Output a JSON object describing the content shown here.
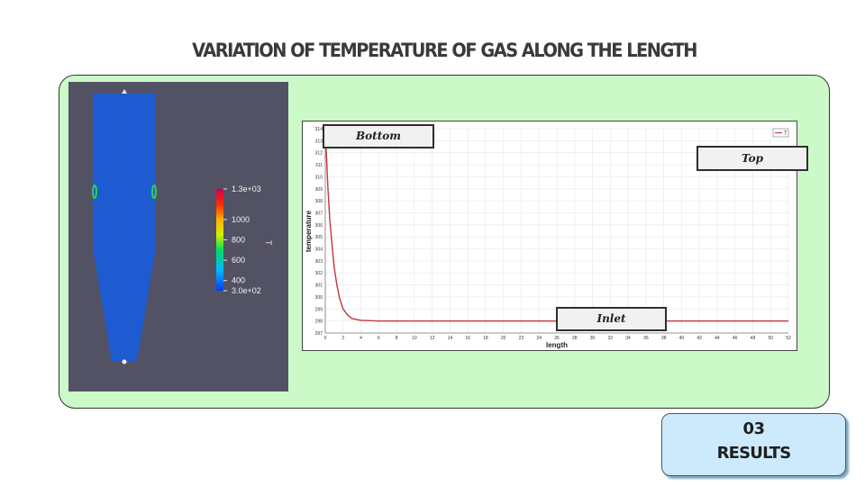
{
  "slide": {
    "title": "VARIATION OF TEMPERATURE OF GAS ALONG THE LENGTH",
    "badge_number": "03",
    "badge_label": "RESULTS"
  },
  "colors": {
    "panel_bg": "#ccf9c8",
    "viewport_bg": "#525264",
    "vessel_fill": "#1e5bd0",
    "curve": "#c8343c",
    "badge_bg": "#cdeafd"
  },
  "colorbar": {
    "title": "T",
    "scale": "rainbow",
    "range": [
      300,
      1300
    ],
    "tick_labels": [
      "1.3e+03",
      "1000",
      "800",
      "600",
      "400",
      "3.0e+02"
    ],
    "tick_values": [
      1300,
      1000,
      800,
      600,
      400,
      300
    ]
  },
  "annotations": {
    "bottom": "Bottom",
    "top": "Top",
    "inlet": "Inlet"
  },
  "chart_data": {
    "type": "line",
    "title": "",
    "xlabel": "length",
    "ylabel": "temperature",
    "xlim": [
      0,
      52
    ],
    "ylim": [
      297,
      314
    ],
    "x_ticks": [
      0,
      2,
      4,
      6,
      8,
      10,
      12,
      14,
      16,
      18,
      20,
      22,
      24,
      26,
      28,
      30,
      32,
      34,
      36,
      38,
      40,
      42,
      44,
      46,
      48,
      50,
      52
    ],
    "y_ticks": [
      297,
      298,
      299,
      300,
      301,
      302,
      303,
      304,
      305,
      306,
      307,
      308,
      309,
      310,
      311,
      312,
      313,
      314
    ],
    "grid": true,
    "legend_position": "top-right",
    "series": [
      {
        "name": "T",
        "x": [
          0,
          0.15,
          0.3,
          0.5,
          0.8,
          1.0,
          1.3,
          1.6,
          2.0,
          2.5,
          3.0,
          4.0,
          6.0,
          10,
          20,
          30,
          40,
          52
        ],
        "y": [
          313.5,
          311.5,
          309.0,
          306.5,
          304.0,
          302.5,
          301.0,
          299.9,
          299.0,
          298.5,
          298.2,
          298.05,
          298.0,
          298.0,
          298.0,
          298.0,
          298.0,
          298.0
        ]
      }
    ]
  }
}
